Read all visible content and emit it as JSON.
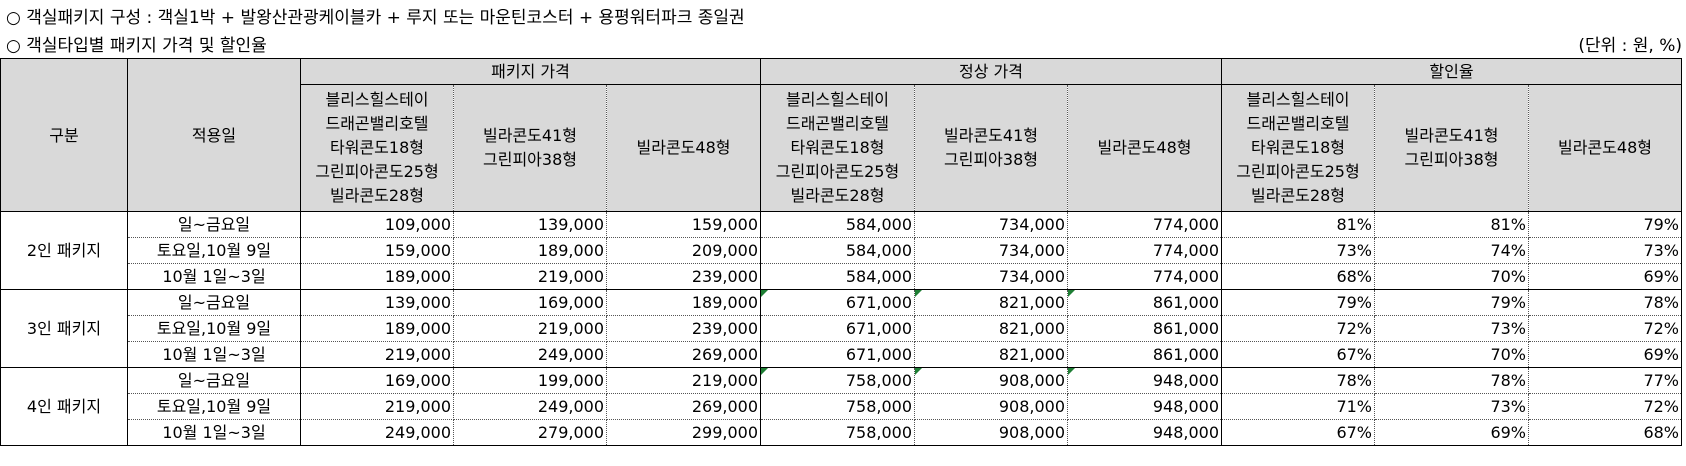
{
  "intro": {
    "line1": "○ 객실패키지 구성 : 객실1박 + 발왕산관광케이블카 + 루지 또는 마운틴코스터 + 용평워터파크 종일권",
    "line2": "○ 객실타입별 패키지 가격 및 할인율",
    "unit": "(단위 : 원, %)"
  },
  "table": {
    "head_category": "구분",
    "head_date": "적용일",
    "groups": [
      "패키지 가격",
      "정상 가격",
      "할인율"
    ],
    "room_types": [
      [
        "블리스힐스테이",
        "드래곤밸리호텔",
        "타워콘도18형",
        "그린피아콘도25형",
        "빌라콘도28형"
      ],
      [
        "빌라콘도41형",
        "그린피아38형"
      ],
      [
        "빌라콘도48형"
      ]
    ],
    "packages": [
      {
        "name": "2인 패키지",
        "rows": [
          {
            "date": "일~금요일",
            "vals": [
              "109,000",
              "139,000",
              "159,000",
              "584,000",
              "734,000",
              "774,000",
              "81%",
              "81%",
              "79%"
            ]
          },
          {
            "date": "토요일,10월 9일",
            "vals": [
              "159,000",
              "189,000",
              "209,000",
              "584,000",
              "734,000",
              "774,000",
              "73%",
              "74%",
              "73%"
            ]
          },
          {
            "date": "10월 1일~3일",
            "vals": [
              "189,000",
              "219,000",
              "239,000",
              "584,000",
              "734,000",
              "774,000",
              "68%",
              "70%",
              "69%"
            ]
          }
        ]
      },
      {
        "name": "3인 패키지",
        "rows": [
          {
            "date": "일~금요일",
            "vals": [
              "139,000",
              "169,000",
              "189,000",
              "671,000",
              "821,000",
              "861,000",
              "79%",
              "79%",
              "78%"
            ]
          },
          {
            "date": "토요일,10월 9일",
            "vals": [
              "189,000",
              "219,000",
              "239,000",
              "671,000",
              "821,000",
              "861,000",
              "72%",
              "73%",
              "72%"
            ]
          },
          {
            "date": "10월 1일~3일",
            "vals": [
              "219,000",
              "249,000",
              "269,000",
              "671,000",
              "821,000",
              "861,000",
              "67%",
              "70%",
              "69%"
            ]
          }
        ]
      },
      {
        "name": "4인 패키지",
        "rows": [
          {
            "date": "일~금요일",
            "vals": [
              "169,000",
              "199,000",
              "219,000",
              "758,000",
              "908,000",
              "948,000",
              "78%",
              "78%",
              "77%"
            ]
          },
          {
            "date": "토요일,10월 9일",
            "vals": [
              "219,000",
              "249,000",
              "269,000",
              "758,000",
              "908,000",
              "948,000",
              "71%",
              "73%",
              "72%"
            ]
          },
          {
            "date": "10월 1일~3일",
            "vals": [
              "249,000",
              "279,000",
              "299,000",
              "758,000",
              "908,000",
              "948,000",
              "67%",
              "69%",
              "68%"
            ]
          }
        ]
      }
    ]
  }
}
